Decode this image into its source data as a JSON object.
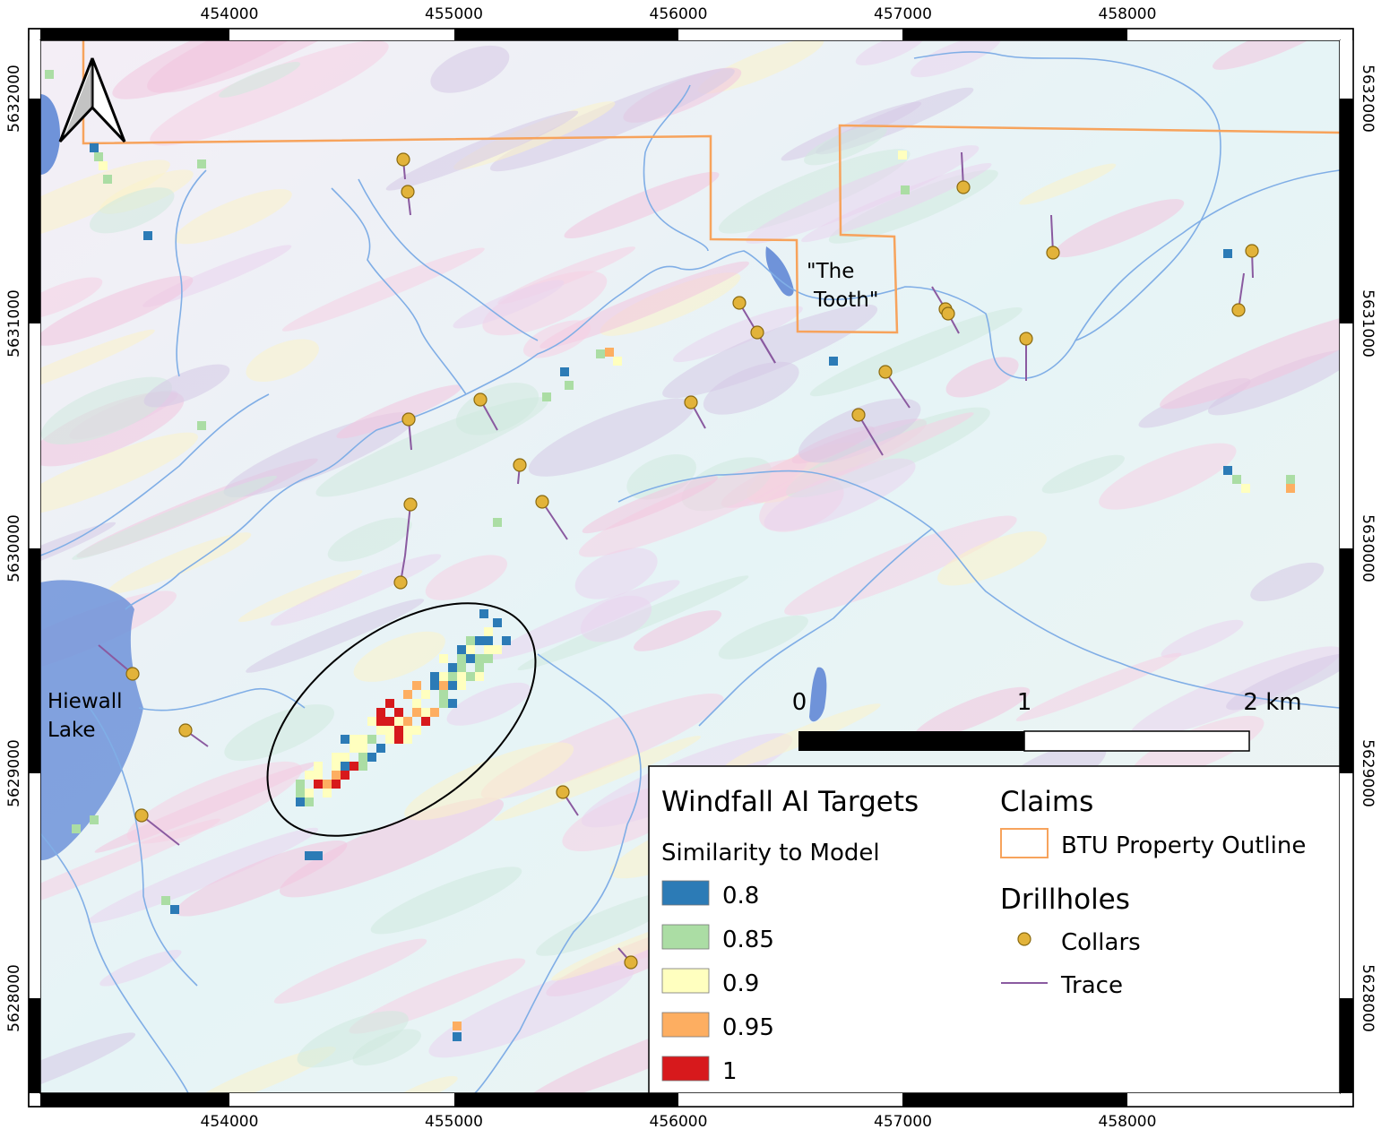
{
  "map": {
    "easting_labels": [
      454000,
      455000,
      456000,
      457000,
      458000
    ],
    "northing_labels": [
      5632000,
      5631000,
      5630000,
      5629000,
      5628000
    ],
    "places": {
      "the_tooth": [
        "\"The",
        "Tooth\""
      ],
      "hiewall_lake": [
        "Hiewall",
        "Lake"
      ]
    },
    "scale_bar": [
      "0",
      "1",
      "2 km"
    ]
  },
  "legend": {
    "title": "Windfall AI Targets",
    "subtitle": "Similarity to Model",
    "classes": [
      {
        "label": "0.8",
        "color": "#2c7bb6"
      },
      {
        "label": "0.85",
        "color": "#abdda4"
      },
      {
        "label": "0.9",
        "color": "#ffffbf"
      },
      {
        "label": "0.95",
        "color": "#fdae61"
      },
      {
        "label": "1",
        "color": "#d7191c"
      }
    ],
    "claims_title": "Claims",
    "claims_item": "BTU Property Outline",
    "drillholes_title": "Drillholes",
    "collars": "Collars",
    "trace": "Trace"
  }
}
